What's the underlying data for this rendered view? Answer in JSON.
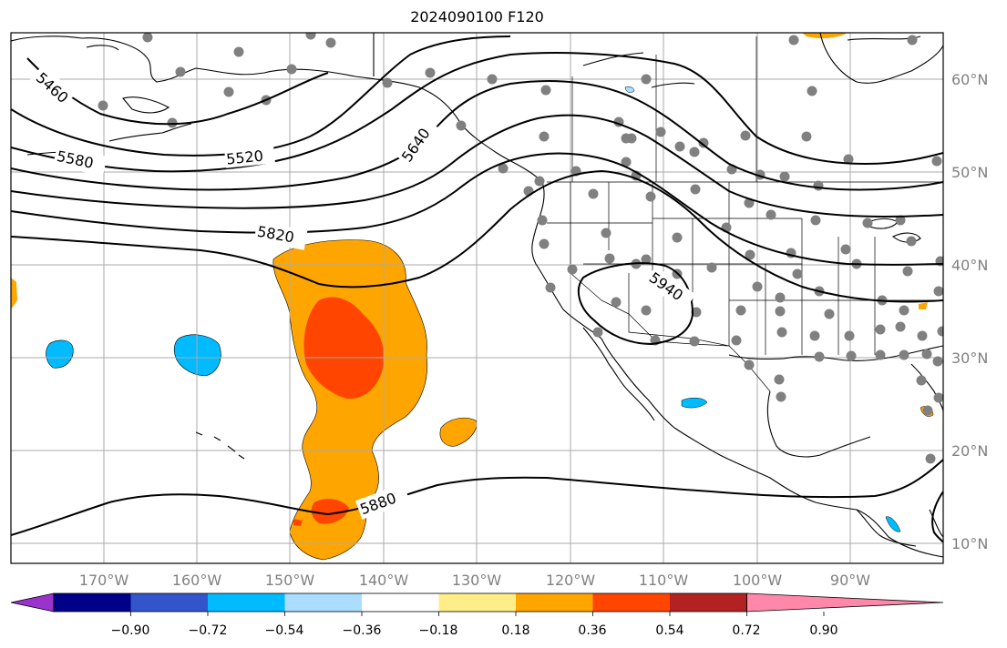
{
  "title": "2024090100 F120",
  "map": {
    "lat_labels": [
      "60°N",
      "50°N",
      "40°N",
      "30°N",
      "20°N",
      "10°N"
    ],
    "lon_labels": [
      "170°W",
      "160°W",
      "150°W",
      "140°W",
      "130°W",
      "120°W",
      "110°W",
      "100°W",
      "90°W"
    ],
    "contour_labels": [
      "5460",
      "5520",
      "5580",
      "5640",
      "5820",
      "5880",
      "5940"
    ],
    "colors": {
      "land_outline": "#000000",
      "grid": "#aaaaaa",
      "station_dot": "#808080",
      "contour": "#000000"
    }
  },
  "colorbar": {
    "colors": [
      "#9933cc",
      "#000088",
      "#3355cc",
      "#00bbff",
      "#aaddff",
      "#ffffff",
      "#ffee88",
      "#ffa500",
      "#ff4500",
      "#b22222",
      "#ff88aa"
    ],
    "tick_labels": [
      "−0.90",
      "−0.72",
      "−0.54",
      "−0.36",
      "−0.18",
      "0.18",
      "0.36",
      "0.54",
      "0.72",
      "0.90"
    ]
  }
}
